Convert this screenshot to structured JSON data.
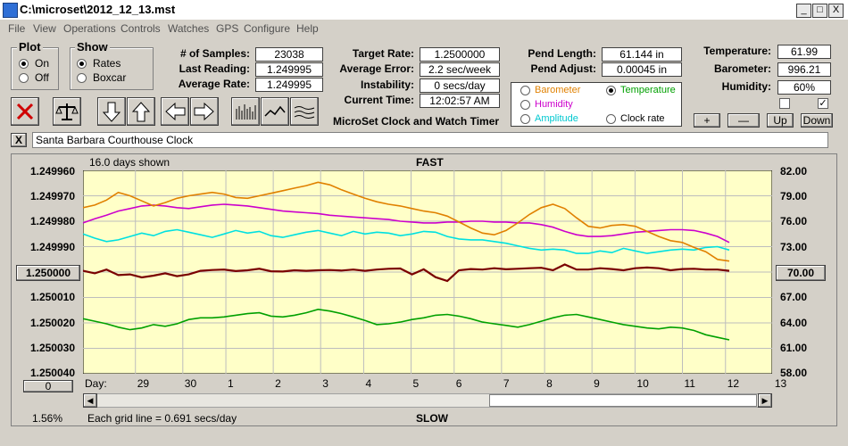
{
  "window": {
    "title": "C:\\microset\\2012_12_13.mst",
    "minimize": "_",
    "maximize": "□",
    "close": "X"
  },
  "menu": [
    "File",
    "View",
    "Operations",
    "Controls",
    "Watches",
    "GPS",
    "Configure",
    "Help"
  ],
  "plot_group": {
    "title": "Plot",
    "on": "On",
    "off": "Off",
    "selected": "On"
  },
  "show_group": {
    "title": "Show",
    "rates": "Rates",
    "boxcar": "Boxcar",
    "selected": "Rates"
  },
  "stats": {
    "samples_label": "# of Samples:",
    "samples": "23038",
    "last_label": "Last Reading:",
    "last": "1.249995",
    "avg_rate_label": "Average Rate:",
    "avg_rate": "1.249995",
    "target_label": "Target Rate:",
    "target": "1.2500000",
    "avg_err_label": "Average Error:",
    "avg_err": "2.2 sec/week",
    "instab_label": "Instability:",
    "instab": "0 secs/day",
    "time_label": "Current Time:",
    "time": "12:02:57 AM",
    "pend_len_label": "Pend Length:",
    "pend_len": "61.144 in",
    "pend_adj_label": "Pend Adjust:",
    "pend_adj": "0.00045 in",
    "temp_label": "Temperature:",
    "temp": "61.99",
    "baro_label": "Barometer:",
    "baro": "996.21",
    "hum_label": "Humidity:",
    "hum": "60%"
  },
  "sensor_options": {
    "barometer": "Barometer",
    "temperature": "Temperature",
    "humidity": "Humidity",
    "amplitude": "Amplitude",
    "clock_rate": "Clock rate",
    "selected": "Temperature"
  },
  "colors": {
    "barometer": "#e08000",
    "temperature": "#00a000",
    "humidity": "#cc00cc",
    "amplitude": "#00e0e0",
    "clock_rate": "#7a0000",
    "plot_bg": "#ffffc8"
  },
  "app_caption": "MicroSet Clock and Watch Timer",
  "adjust_buttons": {
    "plus": "+",
    "minus": "—",
    "up": "Up",
    "down": "Down"
  },
  "clock_name": "Santa Barbara Courthouse Clock",
  "clear_x": "X",
  "toolbar_icons": [
    "close-x-icon",
    "balance-scale-icon",
    "arrow-down-icon",
    "arrow-up-icon",
    "arrow-left-icon",
    "arrow-right-icon",
    "bar-chart-icon",
    "line-chart-icon",
    "smooth-lines-icon"
  ],
  "chart_footer": {
    "days_shown": "16.0 days shown",
    "fast": "FAST",
    "slow": "SLOW",
    "grid_note": "Each grid line = 0.691 secs/day",
    "percent": "1.56%",
    "day_label": "Day:",
    "offset_box": "0",
    "center_left": "1.250000",
    "center_right": "70.00"
  },
  "chart_data": {
    "type": "line",
    "x_label": "Day:",
    "x_ticks": [
      "29",
      "30",
      "1",
      "2",
      "3",
      "4",
      "5",
      "6",
      "7",
      "8",
      "9",
      "10",
      "11",
      "12",
      "13"
    ],
    "x_range": [
      0,
      16
    ],
    "x_tick_positions": [
      1.3,
      2.4,
      3.4,
      4.5,
      5.6,
      6.6,
      7.7,
      8.7,
      9.8,
      10.8,
      11.9,
      12.9,
      14.0,
      15.0,
      16.1
    ],
    "y_left_ticks": [
      "1.249960",
      "1.249970",
      "1.249980",
      "1.249990",
      "1.250000",
      "1.250010",
      "1.250020",
      "1.250030",
      "1.250040"
    ],
    "y_left_range": [
      1.24996,
      1.25004
    ],
    "y_right_ticks": [
      "82.00",
      "79.00",
      "76.00",
      "73.00",
      "70.00",
      "67.00",
      "64.00",
      "61.00",
      "58.00"
    ],
    "y_right_range": [
      82,
      58
    ],
    "grid": true,
    "series": [
      {
        "name": "Temperature",
        "values": [
          64.5,
          64.2,
          63.9,
          63.5,
          63.2,
          63.4,
          63.8,
          63.6,
          63.9,
          64.4,
          64.6,
          64.6,
          64.7,
          64.9,
          65.1,
          65.2,
          64.8,
          64.7,
          64.9,
          65.2,
          65.6,
          65.4,
          65.1,
          64.7,
          64.3,
          63.8,
          63.9,
          64.1,
          64.4,
          64.6,
          64.9,
          65.0,
          64.8,
          64.5,
          64.1,
          63.9,
          63.7,
          63.5,
          63.8,
          64.2,
          64.6,
          64.9,
          65.0,
          64.7,
          64.4,
          64.1,
          63.8,
          63.6,
          63.4,
          63.3,
          63.5,
          63.4,
          63.1,
          62.6,
          62.3,
          62.0
        ]
      },
      {
        "name": "Clock rate",
        "values": [
          1.2499995,
          1.2500005,
          1.249999,
          1.2500012,
          1.2500009,
          1.2500021,
          1.2500014,
          1.2500005,
          1.2500016,
          1.2500009,
          1.2499995,
          1.2499992,
          1.249999,
          1.2499996,
          1.2499993,
          1.2499987,
          1.2499997,
          1.2499998,
          1.2499993,
          1.2499995,
          1.2499993,
          1.2499992,
          1.2499994,
          1.249999,
          1.2499995,
          1.249999,
          1.2499987,
          1.2499986,
          1.2500009,
          1.2499989,
          1.250002,
          1.2500035,
          1.2499993,
          1.2499988,
          1.249999,
          1.2499985,
          1.2499989,
          1.2499987,
          1.2499985,
          1.2499983,
          1.2499993,
          1.249997,
          1.249999,
          1.249999,
          1.2499985,
          1.2499988,
          1.2499993,
          1.2499985,
          1.2499982,
          1.2499985,
          1.2499993,
          1.2499988,
          1.2499987,
          1.249999,
          1.249999,
          1.2499995
        ]
      },
      {
        "name": "Amplitude",
        "values": [
          74.5,
          74.0,
          73.6,
          73.8,
          74.2,
          74.6,
          74.3,
          74.8,
          75.0,
          74.7,
          74.4,
          74.1,
          74.5,
          74.9,
          74.6,
          74.8,
          74.3,
          74.1,
          74.4,
          74.7,
          74.9,
          74.6,
          74.3,
          74.8,
          74.5,
          74.7,
          74.6,
          74.3,
          74.5,
          74.8,
          74.7,
          74.2,
          73.9,
          73.8,
          73.8,
          73.6,
          73.4,
          73.1,
          72.8,
          72.6,
          72.7,
          72.6,
          72.2,
          72.2,
          72.5,
          72.3,
          72.8,
          72.5,
          72.2,
          72.4,
          72.6,
          72.7,
          72.6,
          72.9,
          73.0,
          72.6
        ]
      },
      {
        "name": "Humidity",
        "values": [
          75.8,
          76.3,
          76.7,
          77.2,
          77.5,
          77.8,
          77.9,
          77.8,
          77.6,
          77.5,
          77.7,
          77.9,
          78.0,
          77.9,
          77.8,
          77.6,
          77.4,
          77.2,
          77.1,
          77.0,
          76.9,
          76.7,
          76.6,
          76.5,
          76.4,
          76.3,
          76.2,
          76.0,
          75.9,
          75.8,
          75.8,
          75.9,
          75.9,
          76.0,
          76.0,
          75.9,
          75.9,
          75.8,
          75.8,
          75.6,
          75.3,
          74.8,
          74.4,
          74.2,
          74.2,
          74.3,
          74.5,
          74.7,
          74.8,
          74.9,
          75.0,
          75.0,
          74.9,
          74.6,
          74.2,
          73.5
        ]
      },
      {
        "name": "Barometer",
        "values": [
          77.6,
          77.9,
          78.5,
          79.4,
          79.0,
          78.4,
          77.8,
          78.2,
          78.7,
          79.0,
          79.2,
          79.4,
          79.2,
          78.8,
          78.7,
          79.0,
          79.3,
          79.6,
          79.9,
          80.2,
          80.6,
          80.3,
          79.7,
          79.2,
          78.7,
          78.3,
          78.0,
          77.8,
          77.5,
          77.2,
          77.0,
          76.6,
          75.9,
          75.2,
          74.6,
          74.4,
          74.9,
          75.8,
          76.8,
          77.6,
          78.0,
          77.5,
          76.4,
          75.4,
          75.2,
          75.5,
          75.6,
          75.4,
          74.8,
          74.2,
          73.7,
          73.5,
          72.9,
          72.4,
          71.5,
          71.3
        ]
      }
    ]
  },
  "scroll": {
    "left_arrow": "◀",
    "right_arrow": "▶"
  }
}
